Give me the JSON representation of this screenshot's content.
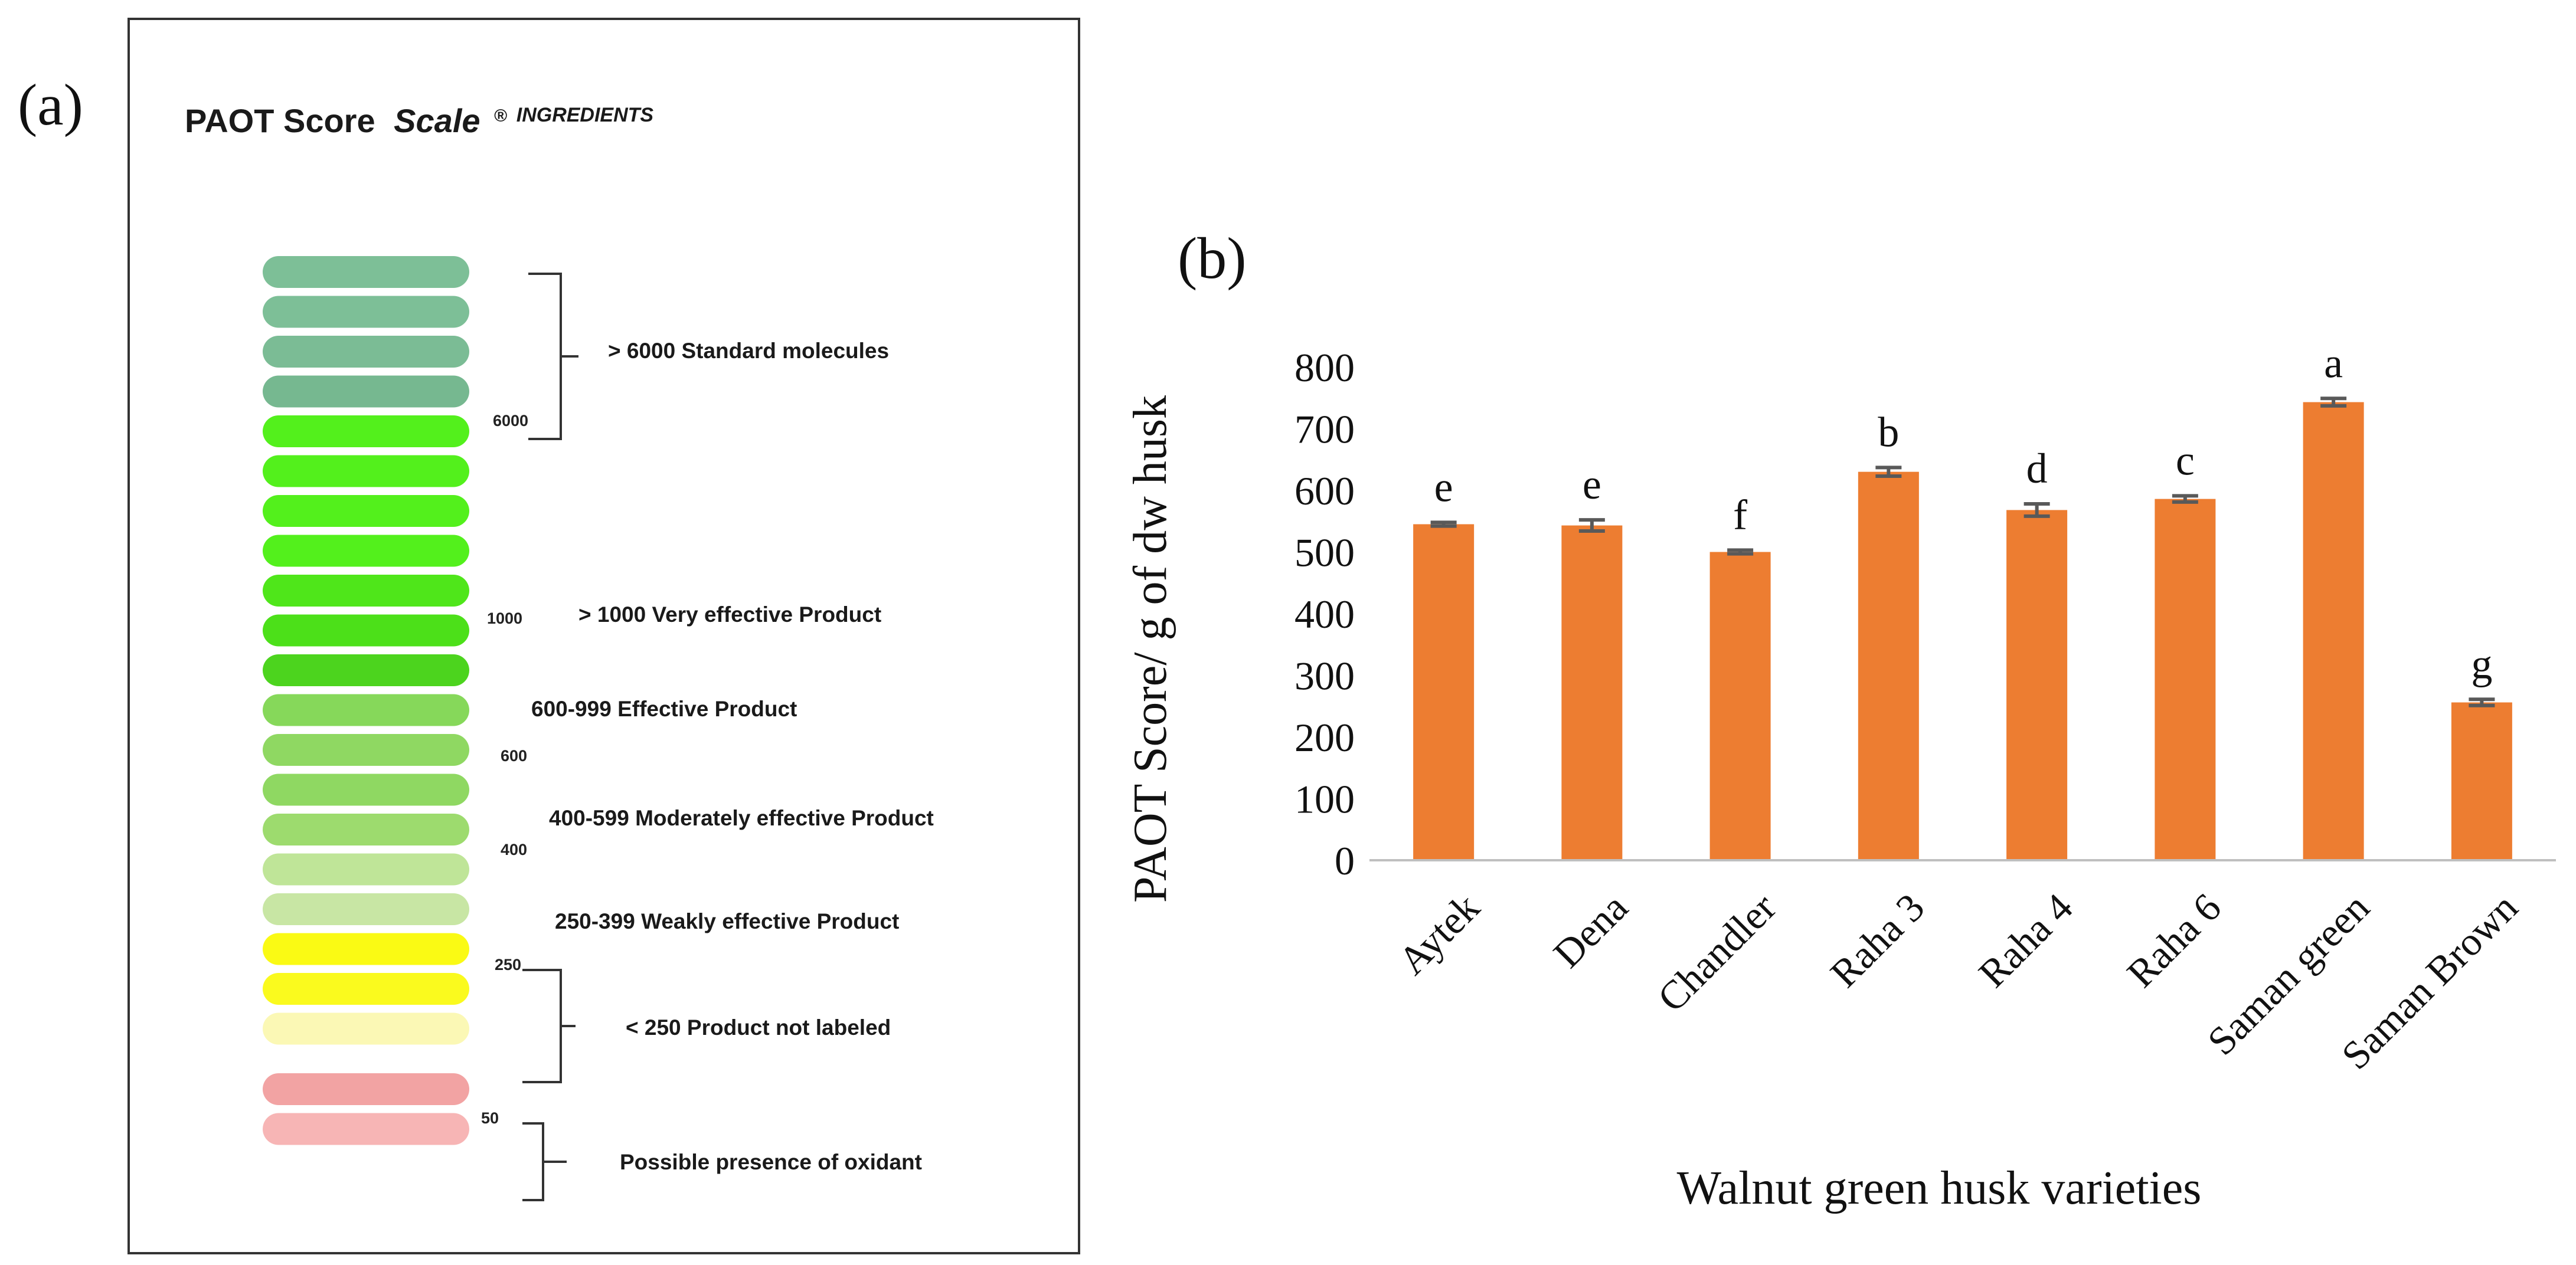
{
  "panel_a": {
    "label": "(a)",
    "title_main": "PAOT Score",
    "title_scale": "Scale",
    "title_mark": "®",
    "title_ingredients": "INGREDIENTS",
    "pills": [
      {
        "color": "#7dbf97"
      },
      {
        "color": "#7dbf97"
      },
      {
        "color": "#7bbc95"
      },
      {
        "color": "#76b890"
      },
      {
        "color": "#53f01c"
      },
      {
        "color": "#53f01c"
      },
      {
        "color": "#53f01c"
      },
      {
        "color": "#53f01c"
      },
      {
        "color": "#4fe61a"
      },
      {
        "color": "#4ce019"
      },
      {
        "color": "#4cd41e"
      },
      {
        "color": "#86d85a"
      },
      {
        "color": "#8fd862"
      },
      {
        "color": "#8fd862"
      },
      {
        "color": "#9ddb6e"
      },
      {
        "color": "#bfe598"
      },
      {
        "color": "#c8e6a4"
      },
      {
        "color": "#fafa14"
      },
      {
        "color": "#fafa1e"
      },
      {
        "color": "#fbf8b5"
      },
      {
        "color": "#f2a3a3"
      },
      {
        "color": "#f7b5b5"
      }
    ],
    "ticks": [
      "6000",
      "1000",
      "600",
      "400",
      "250",
      "50"
    ],
    "categories": [
      "> 6000  Standard molecules",
      "> 1000  Very effective Product",
      "600-999 Effective Product",
      "400-599 Moderately effective Product",
      "250-399 Weakly effective Product",
      "< 250 Product not labeled",
      "Possible presence of oxidant"
    ]
  },
  "panel_b": {
    "label": "(b)"
  },
  "chart_data": {
    "type": "bar",
    "xlabel": "Walnut green husk varieties",
    "ylabel": "PAOT Score/ g of dw husk",
    "ylim": [
      0,
      800
    ],
    "yticks": [
      0,
      100,
      200,
      300,
      400,
      500,
      600,
      700,
      800
    ],
    "categories": [
      "Aytek",
      "Dena",
      "Chandler",
      "Raha 3",
      "Raha 4",
      "Raha 6",
      "Saman green",
      "Saman Brown"
    ],
    "values": [
      545,
      543,
      500,
      630,
      568,
      586,
      743,
      256
    ],
    "errors": [
      3,
      9,
      3,
      7,
      10,
      5,
      6,
      5
    ],
    "letters": [
      "e",
      "e",
      "f",
      "b",
      "d",
      "c",
      "a",
      "g"
    ],
    "bar_color": "#ed7d31",
    "error_color": "#595959"
  }
}
